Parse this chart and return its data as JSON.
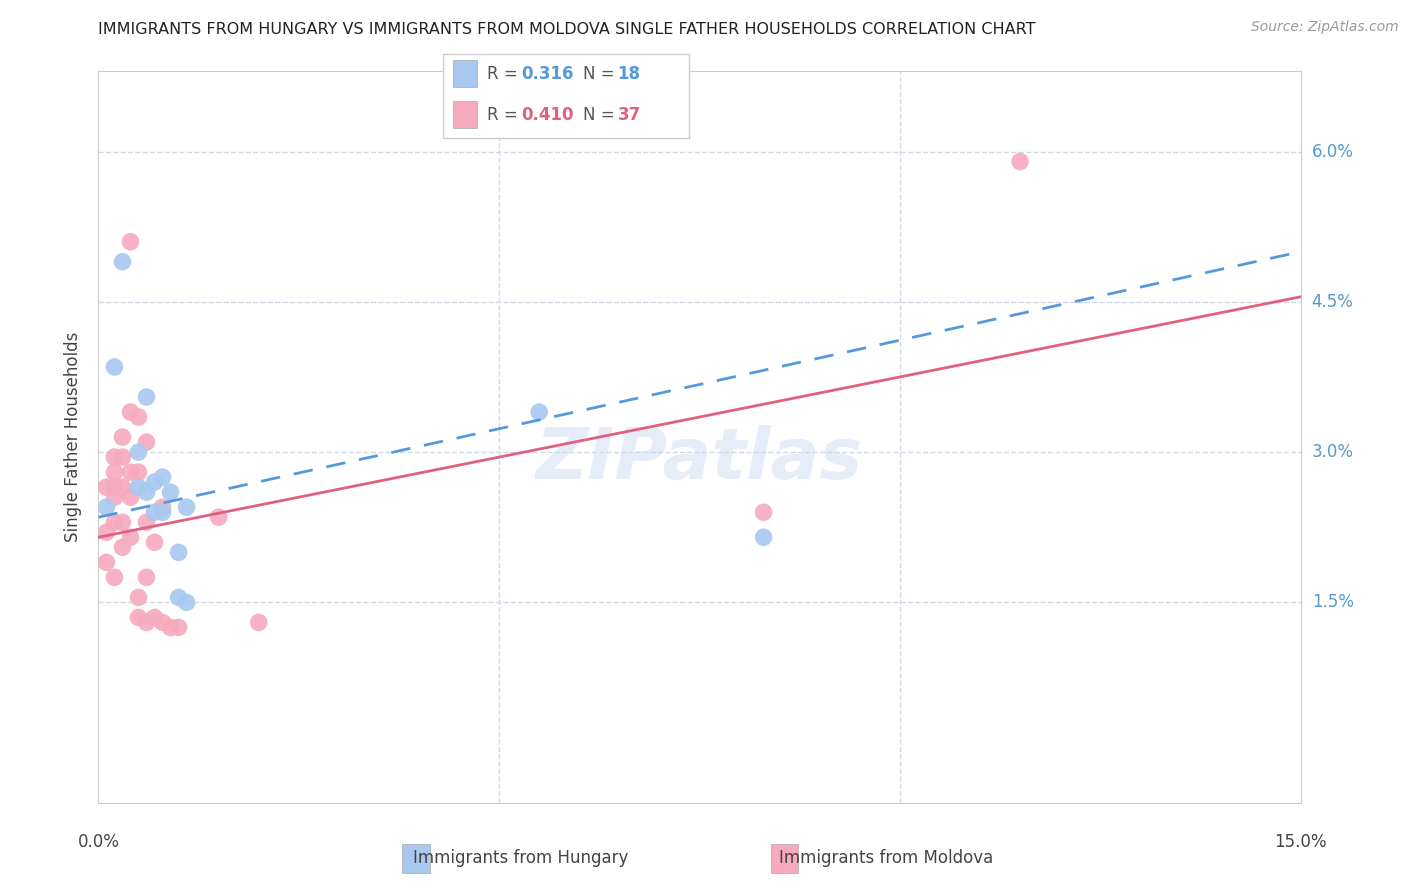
{
  "title": "IMMIGRANTS FROM HUNGARY VS IMMIGRANTS FROM MOLDOVA SINGLE FATHER HOUSEHOLDS CORRELATION CHART",
  "source": "Source: ZipAtlas.com",
  "ylabel": "Single Father Households",
  "ytick_labels": [
    "",
    "1.5%",
    "3.0%",
    "4.5%",
    "6.0%"
  ],
  "ytick_values": [
    0.0,
    0.015,
    0.03,
    0.045,
    0.06
  ],
  "xlim": [
    0.0,
    0.15
  ],
  "ylim": [
    -0.005,
    0.068
  ],
  "legend_blue_r": "0.316",
  "legend_blue_n": "18",
  "legend_pink_r": "0.410",
  "legend_pink_n": "37",
  "label_hungary": "Immigrants from Hungary",
  "label_moldova": "Immigrants from Moldova",
  "blue_color": "#a8c8f0",
  "pink_color": "#f5aabe",
  "blue_line_color": "#5599dd",
  "pink_line_color": "#e06080",
  "blue_scatter": [
    [
      0.001,
      0.0245
    ],
    [
      0.002,
      0.0385
    ],
    [
      0.003,
      0.049
    ],
    [
      0.005,
      0.03
    ],
    [
      0.005,
      0.0265
    ],
    [
      0.006,
      0.0355
    ],
    [
      0.006,
      0.026
    ],
    [
      0.007,
      0.027
    ],
    [
      0.007,
      0.024
    ],
    [
      0.008,
      0.0275
    ],
    [
      0.008,
      0.024
    ],
    [
      0.009,
      0.026
    ],
    [
      0.01,
      0.02
    ],
    [
      0.01,
      0.0155
    ],
    [
      0.011,
      0.015
    ],
    [
      0.011,
      0.0245
    ],
    [
      0.055,
      0.034
    ],
    [
      0.083,
      0.0215
    ]
  ],
  "pink_scatter": [
    [
      0.001,
      0.0265
    ],
    [
      0.001,
      0.022
    ],
    [
      0.001,
      0.019
    ],
    [
      0.002,
      0.0295
    ],
    [
      0.002,
      0.028
    ],
    [
      0.002,
      0.0265
    ],
    [
      0.002,
      0.0255
    ],
    [
      0.002,
      0.023
    ],
    [
      0.002,
      0.0175
    ],
    [
      0.003,
      0.0315
    ],
    [
      0.003,
      0.0295
    ],
    [
      0.003,
      0.0265
    ],
    [
      0.003,
      0.023
    ],
    [
      0.003,
      0.0205
    ],
    [
      0.004,
      0.034
    ],
    [
      0.004,
      0.028
    ],
    [
      0.004,
      0.0255
    ],
    [
      0.004,
      0.0215
    ],
    [
      0.004,
      0.051
    ],
    [
      0.005,
      0.0335
    ],
    [
      0.005,
      0.028
    ],
    [
      0.005,
      0.0155
    ],
    [
      0.005,
      0.0135
    ],
    [
      0.006,
      0.031
    ],
    [
      0.006,
      0.023
    ],
    [
      0.006,
      0.0175
    ],
    [
      0.006,
      0.013
    ],
    [
      0.007,
      0.021
    ],
    [
      0.007,
      0.0135
    ],
    [
      0.008,
      0.0245
    ],
    [
      0.008,
      0.013
    ],
    [
      0.009,
      0.0125
    ],
    [
      0.01,
      0.0125
    ],
    [
      0.015,
      0.0235
    ],
    [
      0.02,
      0.013
    ],
    [
      0.083,
      0.024
    ],
    [
      0.115,
      0.059
    ]
  ],
  "blue_line_x": [
    0.0,
    0.15
  ],
  "blue_line_y": [
    0.0235,
    0.05
  ],
  "pink_line_x": [
    0.0,
    0.15
  ],
  "pink_line_y": [
    0.0215,
    0.0455
  ],
  "grid_color": "#d0d8e8",
  "watermark": "ZIPatlas",
  "background_color": "#ffffff"
}
